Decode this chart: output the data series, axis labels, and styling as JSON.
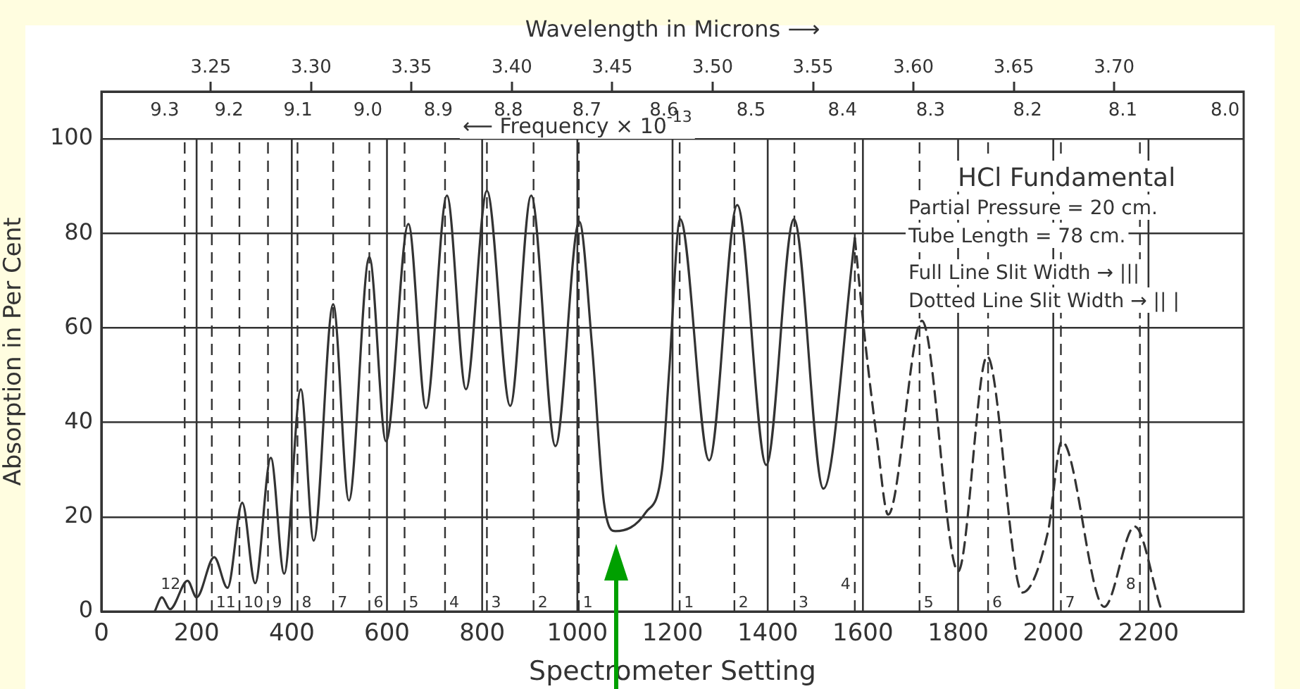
{
  "chart_data": {
    "type": "line",
    "xlabel": "Spectrometer Setting",
    "ylabel": "Absorption in Per Cent",
    "x2label": "Wavelength in Microns ⟶",
    "xlim": [
      0,
      2400
    ],
    "xticks": [
      0,
      200,
      400,
      600,
      800,
      1000,
      1200,
      1400,
      1600,
      1800,
      2000,
      2200
    ],
    "ylim": [
      0,
      110
    ],
    "yticks": [
      0,
      20,
      40,
      60,
      80,
      100
    ],
    "x2lim": [
      3.1955,
      3.7645
    ],
    "x2ticks": [
      3.25,
      {
        "value": 3.3,
        "label": "3.30"
      },
      3.35,
      {
        "value": 3.4,
        "label": "3.40"
      },
      3.45,
      {
        "value": 3.5,
        "label": "3.50"
      },
      3.55,
      {
        "value": 3.6,
        "label": "3.60"
      },
      3.65,
      {
        "value": 3.7,
        "label": "3.70"
      }
    ],
    "grid": true,
    "marker": "none",
    "series": [
      {
        "color": "#333333",
        "line_style": "solid",
        "x": [
          112,
          127,
          144,
          181,
          200,
          237,
          265,
          296,
          323,
          356,
          384,
          419,
          446,
          487,
          520,
          563,
          598,
          645,
          682,
          726,
          766,
          810,
          859,
          903,
          954,
          1004,
          1031,
          1056,
          1080,
          1144,
          1178,
          1193,
          1216,
          1277,
          1336,
          1397,
          1455,
          1517,
          1583
        ],
        "values": [
          0,
          3,
          0.5,
          6.5,
          3,
          11.5,
          5,
          23,
          6,
          32.5,
          8,
          47,
          15,
          65,
          23.5,
          75,
          36,
          82,
          43,
          88,
          47,
          89,
          43.5,
          88,
          35,
          82.5,
          56,
          23,
          17,
          21,
          30,
          51,
          83,
          32,
          86,
          31,
          83,
          26,
          79
        ]
      },
      {
        "color": "#333333",
        "line_style": "dashed",
        "x": [
          1583,
          1606,
          1630,
          1653,
          1724,
          1800,
          1861,
          1935,
          1989,
          2018,
          2107,
          2171,
          2225
        ],
        "values": [
          79,
          56,
          36,
          20.5,
          61.5,
          8.5,
          54,
          4,
          17,
          36,
          1,
          18,
          1
        ]
      }
    ],
    "ref_lines": [
      {
        "axis": "x",
        "value": 175
      },
      {
        "axis": "x",
        "value": 232
      },
      {
        "axis": "x",
        "value": 290
      },
      {
        "axis": "x",
        "value": 350
      },
      {
        "axis": "x",
        "value": 412
      },
      {
        "axis": "x",
        "value": 487
      },
      {
        "axis": "x",
        "value": 563
      },
      {
        "axis": "x",
        "value": 637
      },
      {
        "axis": "x",
        "value": 722
      },
      {
        "axis": "x",
        "value": 810
      },
      {
        "axis": "x",
        "value": 908
      },
      {
        "axis": "x",
        "value": 1003
      },
      {
        "axis": "x",
        "value": 1215
      },
      {
        "axis": "x",
        "value": 1330
      },
      {
        "axis": "x",
        "value": 1456
      },
      {
        "axis": "x",
        "value": 1583
      },
      {
        "axis": "x",
        "value": 1719
      },
      {
        "axis": "x",
        "value": 1863
      },
      {
        "axis": "x",
        "value": 2016
      },
      {
        "axis": "x",
        "value": 2182
      }
    ],
    "annotations": [
      "⟵ Frequency × 10$^{-13}$",
      "HCl Fundamental",
      "Partial Pressure = 20 cm.",
      "Tube Length = 78 cm.",
      "Full Line Slit Width → |||",
      "Dotted Line Slit Width → || |",
      "9.3",
      "9.2",
      "9.1",
      "9.0",
      "8.9",
      "8.8",
      "8.7",
      "8.6",
      "8.5",
      "8.4",
      "8.3",
      "8.2",
      "8.1",
      "8.0",
      {
        "text": "12",
        "x": 175,
        "y": 0
      },
      {
        "text": "11",
        "x": 232,
        "y": 0
      },
      {
        "text": "10",
        "x": 290,
        "y": 0
      },
      {
        "text": "9",
        "x": 350,
        "y": 0
      },
      {
        "text": "8",
        "x": 412,
        "y": 0
      },
      {
        "text": "7",
        "x": 487,
        "y": 0
      },
      {
        "text": "6",
        "x": 563,
        "y": 0
      },
      {
        "text": "5",
        "x": 637,
        "y": 0
      },
      {
        "text": "4",
        "x": 722,
        "y": 0
      },
      {
        "text": "3",
        "x": 810,
        "y": 0
      },
      {
        "text": "2",
        "x": 908,
        "y": 0
      },
      {
        "text": "1",
        "x": 1003,
        "y": 0
      },
      {
        "text": "1",
        "x": 1215,
        "y": 0
      },
      {
        "text": "2",
        "x": 1330,
        "y": 0
      },
      {
        "text": "3",
        "x": 1456,
        "y": 0
      },
      {
        "text": "4",
        "x": 1583,
        "y": 0
      },
      {
        "text": "5",
        "x": 1719,
        "y": 0
      },
      {
        "text": "6",
        "x": 1863,
        "y": 0
      },
      {
        "text": "7",
        "x": 2016,
        "y": 0
      },
      {
        "text": "8",
        "x": 2182,
        "y": 0
      }
    ]
  }
}
